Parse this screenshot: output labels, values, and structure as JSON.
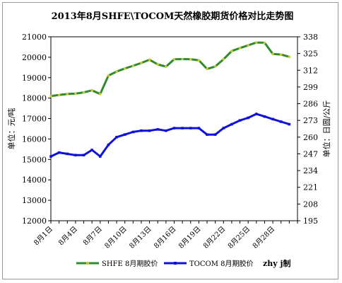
{
  "chart_data": {
    "type": "line",
    "title": "2013年8月SHFE\\TOCOM天然橡胶期货价格对比走势图",
    "ylabel_left": "单位：元/吨",
    "ylabel_right": "单位：日圆/公斤",
    "ylim_left": [
      12000,
      21000
    ],
    "ylim_right": [
      195,
      338
    ],
    "yticks_left": [
      "12000",
      "13000",
      "14000",
      "15000",
      "16000",
      "17000",
      "18000",
      "19000",
      "20000",
      "21000"
    ],
    "yticks_right": [
      "195",
      "208",
      "221",
      "234",
      "247",
      "260",
      "273",
      "286",
      "299",
      "312",
      "325",
      "338"
    ],
    "x_tick_labels": [
      "8月1日",
      "8月4日",
      "8月7日",
      "8月10日",
      "8月13日",
      "8月16日",
      "8月19日",
      "8月22日",
      "8月25日",
      "8月28日"
    ],
    "grid": false,
    "legend_position": "bottom",
    "watermark": "zhy j制",
    "colors": {
      "shfe": "#2e8b2e",
      "shfe_marker": "#c8c832",
      "tocom": "#1010dd",
      "plot_bg": "#ffffff"
    },
    "series": [
      {
        "name": "SHFE 8月期胶价",
        "axis": "left",
        "x": [
          1,
          2,
          3,
          4,
          5,
          6,
          7,
          8,
          9,
          10,
          11,
          12,
          13,
          14,
          15,
          16,
          17,
          18,
          19,
          20,
          21,
          22,
          23,
          24,
          25,
          26,
          27,
          28,
          29,
          30
        ],
        "values": [
          18100,
          18150,
          18200,
          18220,
          18280,
          18380,
          18200,
          19100,
          19300,
          19450,
          19580,
          19720,
          19880,
          19650,
          19540,
          19900,
          19910,
          19900,
          19850,
          19430,
          19550,
          19900,
          20300,
          20450,
          20580,
          20720,
          20710,
          20160,
          20130,
          20020
        ]
      },
      {
        "name": "TOCOM 8月期胶价",
        "axis": "right",
        "x": [
          1,
          2,
          3,
          4,
          5,
          6,
          7,
          8,
          9,
          10,
          11,
          12,
          13,
          14,
          15,
          16,
          17,
          18,
          19,
          20,
          21,
          22,
          23,
          24,
          25,
          26,
          27,
          28,
          29,
          30
        ],
        "values": [
          245,
          248,
          247,
          246,
          246,
          250,
          245,
          254,
          260,
          262,
          264,
          265,
          265,
          266,
          265,
          267,
          267,
          267,
          267,
          262,
          262,
          267,
          270,
          273,
          275,
          278,
          276,
          274,
          272,
          270
        ]
      }
    ]
  }
}
